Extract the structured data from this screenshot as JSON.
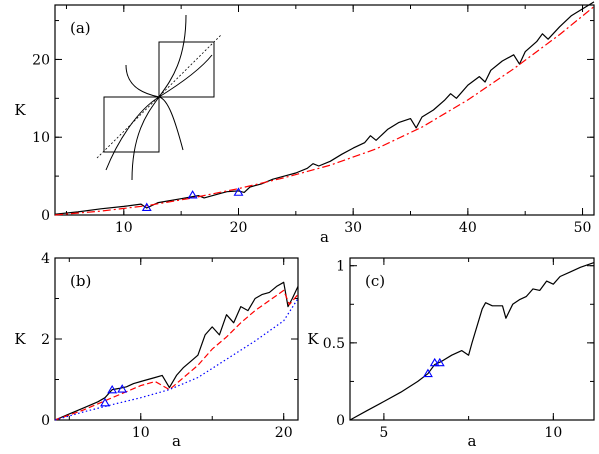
{
  "chart_data": [
    {
      "id": "a",
      "type": "line",
      "panel_label": "(a)",
      "xlabel": "a",
      "ylabel": "K",
      "xlim": [
        4,
        51
      ],
      "ylim": [
        0,
        27
      ],
      "xticks": [
        10,
        20,
        30,
        40,
        50
      ],
      "yticks": [
        0,
        10,
        20
      ],
      "series": [
        {
          "style": "solid",
          "color": "#000000",
          "x": [
            4,
            6,
            8,
            10,
            11.5,
            12,
            13,
            15,
            16.5,
            17,
            18.5,
            19,
            20,
            20.5,
            21,
            22,
            23,
            24,
            25,
            26,
            26.5,
            27,
            28,
            29,
            30,
            31,
            31.5,
            32,
            32.5,
            33,
            34,
            35,
            35.5,
            36,
            37,
            38,
            38.5,
            39,
            40,
            41,
            41.5,
            42,
            43,
            44,
            44.5,
            45,
            46,
            46.5,
            47,
            48,
            49,
            50,
            51
          ],
          "y": [
            0.1,
            0.4,
            0.8,
            1.1,
            1.4,
            0.9,
            1.6,
            2.1,
            2.5,
            2.2,
            2.8,
            3.0,
            3.1,
            2.9,
            3.6,
            4.0,
            4.6,
            5.0,
            5.4,
            6.0,
            6.6,
            6.3,
            6.9,
            7.8,
            8.6,
            9.3,
            10.2,
            9.6,
            10.3,
            11.0,
            11.9,
            12.4,
            11.2,
            12.6,
            13.5,
            14.8,
            15.6,
            15.0,
            16.7,
            17.8,
            17.1,
            18.6,
            19.8,
            20.6,
            19.4,
            21.0,
            22.3,
            23.3,
            22.6,
            24.2,
            25.6,
            26.5,
            27.4
          ]
        },
        {
          "style": "dashdot",
          "color": "#ff0000",
          "x": [
            4,
            8,
            12,
            16,
            20,
            24,
            28,
            32,
            36,
            40,
            44,
            48,
            51
          ],
          "y": [
            0.0,
            0.5,
            1.2,
            2.2,
            3.4,
            4.8,
            6.4,
            8.5,
            11.3,
            14.8,
            18.8,
            23.2,
            26.8
          ]
        }
      ],
      "markers": {
        "color": "#0000ff",
        "x": [
          12,
          16,
          20
        ],
        "y": [
          0.95,
          2.55,
          2.9
        ]
      }
    },
    {
      "id": "b",
      "type": "line",
      "panel_label": "(b)",
      "xlabel": "a",
      "ylabel": "K",
      "xlim": [
        4,
        21
      ],
      "ylim": [
        0,
        4
      ],
      "xticks": [
        10,
        20
      ],
      "yticks": [
        0,
        2,
        4
      ],
      "series": [
        {
          "style": "solid",
          "color": "#000000",
          "x": [
            4,
            5,
            6,
            7,
            7.5,
            8,
            8.5,
            9,
            9.5,
            10,
            10.5,
            11,
            11.5,
            12,
            12.5,
            13,
            13.5,
            14,
            14.5,
            15,
            15.5,
            16,
            16.5,
            17,
            17.5,
            18,
            18.5,
            19,
            19.5,
            20,
            20.3,
            20.6,
            21
          ],
          "y": [
            0,
            0.15,
            0.3,
            0.45,
            0.55,
            0.75,
            0.78,
            0.82,
            0.9,
            0.95,
            1.0,
            1.05,
            1.1,
            0.8,
            1.1,
            1.3,
            1.45,
            1.6,
            2.1,
            2.3,
            2.1,
            2.6,
            2.4,
            2.8,
            2.7,
            3.0,
            3.1,
            3.15,
            3.3,
            3.4,
            2.8,
            3.0,
            3.3
          ]
        },
        {
          "style": "dashed",
          "color": "#ff0000",
          "x": [
            4,
            6,
            8,
            10,
            11,
            12,
            13,
            14,
            15,
            16,
            17,
            18,
            19,
            20,
            20.4,
            21
          ],
          "y": [
            0,
            0.25,
            0.55,
            0.85,
            0.95,
            0.75,
            1.05,
            1.35,
            1.75,
            2.05,
            2.4,
            2.7,
            2.95,
            3.2,
            2.85,
            3.1
          ]
        },
        {
          "style": "dotted",
          "color": "#0000ff",
          "x": [
            4,
            6,
            8,
            10,
            12,
            14,
            16,
            18,
            20,
            21
          ],
          "y": [
            0,
            0.2,
            0.38,
            0.55,
            0.75,
            1.05,
            1.5,
            1.95,
            2.45,
            3.0
          ]
        }
      ],
      "markers": {
        "color": "#0000ff",
        "x": [
          7.5,
          8,
          8.7
        ],
        "y": [
          0.42,
          0.74,
          0.76
        ]
      }
    },
    {
      "id": "c",
      "type": "line",
      "panel_label": "(c)",
      "xlabel": "a",
      "ylabel": "K",
      "xlim": [
        4,
        11.2
      ],
      "ylim": [
        0,
        1.05
      ],
      "xticks": [
        5,
        10
      ],
      "xtick_labels": [
        "5",
        "10"
      ],
      "yticks": [
        0,
        0.5,
        1
      ],
      "ytick_labels": [
        "0",
        "0.5",
        "1"
      ],
      "series": [
        {
          "style": "solid",
          "color": "#000000",
          "x": [
            4,
            4.5,
            5,
            5.5,
            6,
            6.3,
            6.5,
            6.7,
            7,
            7.3,
            7.5,
            7.6,
            7.9,
            8,
            8.2,
            8.5,
            8.6,
            8.8,
            9,
            9.2,
            9.4,
            9.6,
            9.8,
            10,
            10.2,
            10.5,
            10.8,
            11.2
          ],
          "y": [
            0,
            0.06,
            0.12,
            0.18,
            0.25,
            0.3,
            0.36,
            0.38,
            0.42,
            0.45,
            0.42,
            0.5,
            0.72,
            0.76,
            0.74,
            0.74,
            0.66,
            0.75,
            0.78,
            0.8,
            0.85,
            0.84,
            0.9,
            0.88,
            0.93,
            0.96,
            0.99,
            1.02
          ]
        }
      ],
      "markers": {
        "color": "#0000ff",
        "x": [
          6.3,
          6.5,
          6.65
        ],
        "y": [
          0.3,
          0.37,
          0.37
        ]
      }
    }
  ]
}
